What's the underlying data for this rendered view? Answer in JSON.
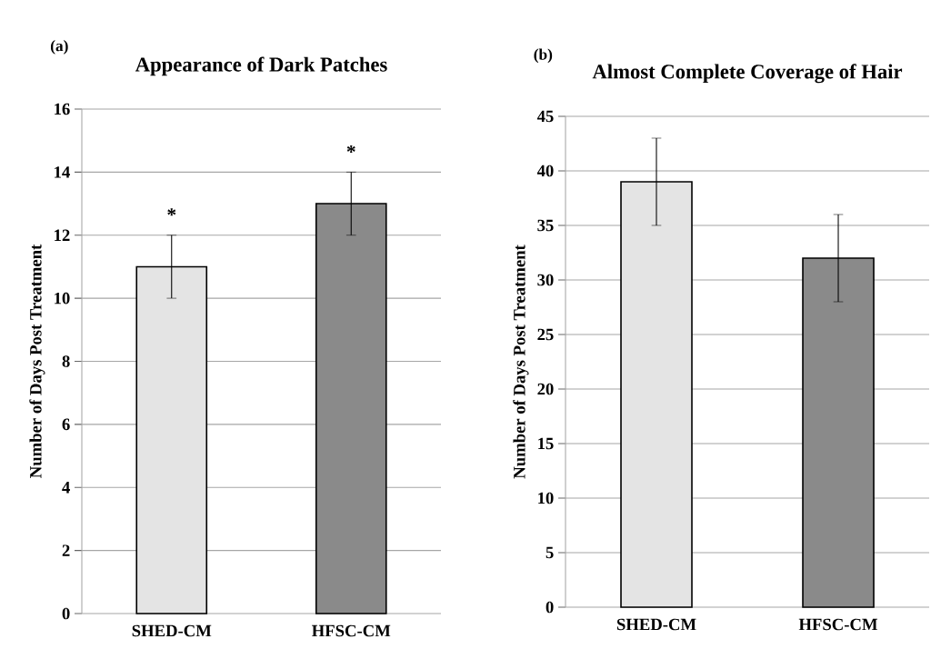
{
  "chart_data": [
    {
      "type": "bar",
      "title": "Appearance of Dark Patches",
      "ylabel": "Number of  Days Post Treatment",
      "categories": [
        "SHED-CM",
        "HFSC-CM"
      ],
      "values": [
        11,
        13
      ],
      "errors": [
        1,
        1
      ],
      "colors": [
        "#e4e4e4",
        "#8a8a8a"
      ],
      "ylim": [
        0,
        16
      ],
      "yticks": [
        0,
        2,
        4,
        6,
        8,
        10,
        12,
        14,
        16
      ],
      "grid": "y",
      "annotations": [
        "(a)",
        "*",
        "*"
      ]
    },
    {
      "type": "bar",
      "title": "Almost Complete Coverage of Hair",
      "ylabel": "Number of  Days Post Treatment",
      "categories": [
        "SHED-CM",
        "HFSC-CM"
      ],
      "values": [
        39,
        32
      ],
      "errors": [
        4,
        4
      ],
      "colors": [
        "#e4e4e4",
        "#8a8a8a"
      ],
      "ylim": [
        0,
        45
      ],
      "yticks": [
        0,
        5,
        10,
        15,
        20,
        25,
        30,
        35,
        40,
        45
      ],
      "grid": "y",
      "annotations": [
        "(b)"
      ]
    }
  ]
}
